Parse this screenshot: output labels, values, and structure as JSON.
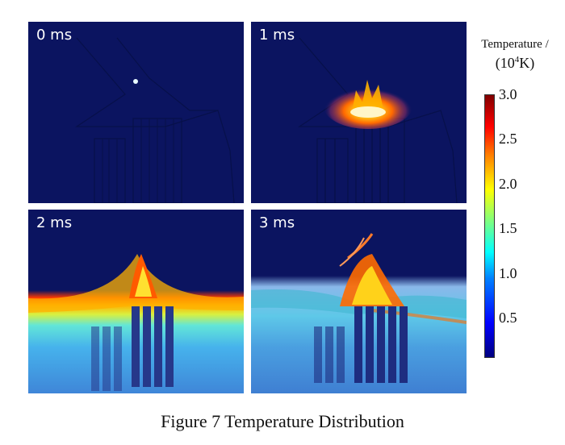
{
  "panels": [
    {
      "label": "0 ms"
    },
    {
      "label": "1 ms"
    },
    {
      "label": "2 ms"
    },
    {
      "label": "3 ms"
    }
  ],
  "colorbar": {
    "title": "Temperature /",
    "unit_base": "(10",
    "unit_exp": "4",
    "unit_tail": "K)",
    "ticks": [
      "3.0",
      "2.5",
      "2.0",
      "1.5",
      "1.0",
      "0.5"
    ],
    "colormap": "jet",
    "background_color": "#0b1460"
  },
  "caption": "Figure 7 Temperature Distribution"
}
